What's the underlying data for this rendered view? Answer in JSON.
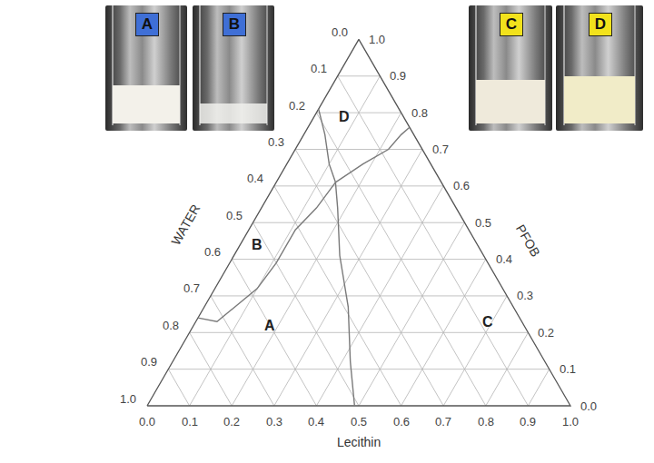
{
  "chart_data": {
    "type": "ternary",
    "grid": true,
    "axes": [
      {
        "title": "WATER",
        "lim": [
          0,
          1
        ],
        "ticks": [
          {
            "value": 0,
            "label": "0.0"
          },
          0.1,
          0.2,
          0.3,
          0.4,
          0.5,
          0.6,
          0.7,
          0.8,
          0.9,
          {
            "value": 1,
            "label": "1.0"
          }
        ]
      },
      {
        "title": "Lecithin",
        "lim": [
          0,
          1
        ],
        "ticks": [
          {
            "value": 0,
            "label": "0.0"
          },
          0.1,
          0.2,
          0.3,
          0.4,
          0.5,
          0.6,
          0.7,
          0.8,
          0.9,
          {
            "value": 1,
            "label": "1.0"
          }
        ]
      },
      {
        "title": "PFOB",
        "lim": [
          0,
          1
        ],
        "ticks": [
          {
            "value": 0,
            "label": "0.0"
          },
          0.1,
          0.2,
          0.3,
          0.4,
          0.5,
          0.6,
          0.7,
          0.8,
          0.9,
          {
            "value": 1,
            "label": "1.0"
          }
        ]
      }
    ],
    "series": [
      {
        "color": "#7a7a7a",
        "lecithin": [
          0.49,
          0.42,
          0.34,
          0.25,
          0.18,
          0.14
        ],
        "pfob": [
          0,
          0.12,
          0.27,
          0.41,
          0.54,
          0.61
        ]
      },
      {
        "color": "#7a7a7a",
        "lecithin": [
          0.14,
          0.18,
          0.22,
          0.23,
          0.24
        ],
        "pfob": [
          0.61,
          0.66,
          0.7,
          0.74,
          0.76
        ]
      },
      {
        "color": "#7a7a7a",
        "lecithin": [
          0,
          0.05,
          0.1,
          0.14
        ],
        "pfob": [
          0.81,
          0.74,
          0.66,
          0.61
        ]
      },
      {
        "color": "#7a7a7a",
        "lecithin": [
          0.14,
          0.13,
          0.11,
          0.11,
          0.1,
          0.05,
          0
        ],
        "pfob": [
          0.61,
          0.54,
          0.48,
          0.39,
          0.32,
          0.23,
          0.24
        ]
      }
    ],
    "regions": [
      {
        "label": "A",
        "lecithin": 0.18,
        "pfob": 0.22
      },
      {
        "label": "B",
        "lecithin": 0.04,
        "pfob": 0.44
      },
      {
        "label": "C",
        "lecithin": 0.69,
        "pfob": 0.23
      },
      {
        "label": "D",
        "lecithin": 0.07,
        "pfob": 0.79
      }
    ],
    "photos": [
      {
        "label": "A",
        "color": "#3f6fd6"
      },
      {
        "label": "B",
        "color": "#3f6fd6"
      },
      {
        "label": "C",
        "color": "#f2e21c"
      },
      {
        "label": "D",
        "color": "#f2e21c"
      }
    ]
  }
}
